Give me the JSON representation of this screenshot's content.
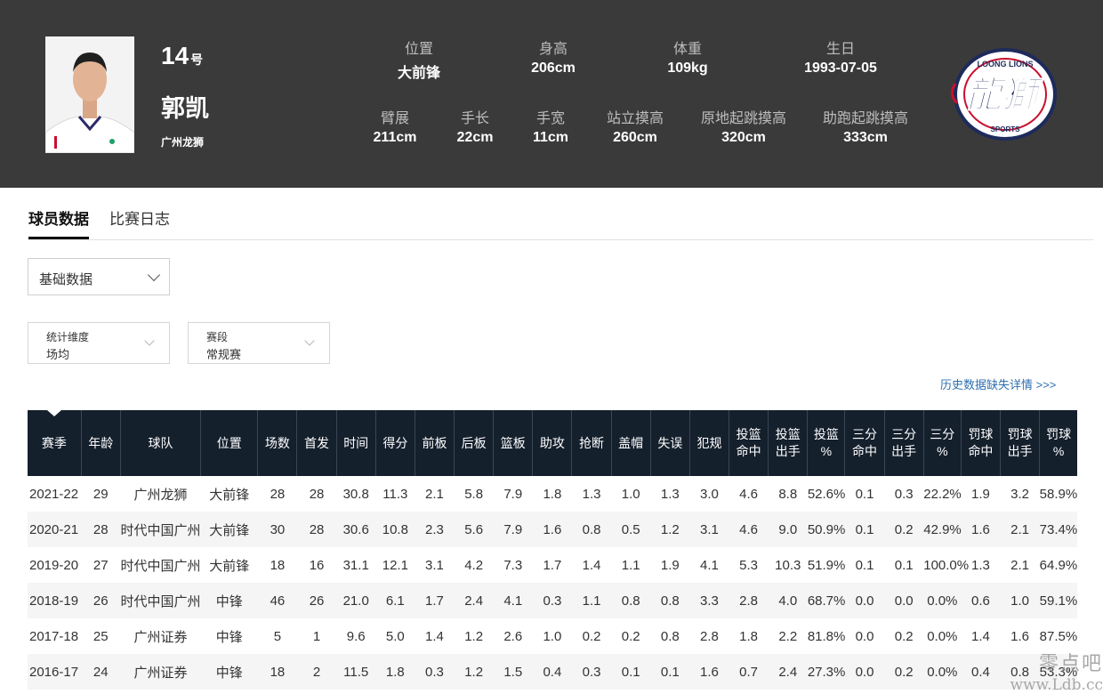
{
  "player": {
    "number": "14",
    "number_suffix": "号",
    "name": "郭凯",
    "team": "广州龙狮"
  },
  "bio_row1": [
    {
      "label": "位置",
      "value": "大前锋"
    },
    {
      "label": "身高",
      "value": "206cm"
    },
    {
      "label": "体重",
      "value": "109kg"
    },
    {
      "label": "生日",
      "value": "1993-07-05"
    }
  ],
  "bio_row2": [
    {
      "label": "臂展",
      "value": "211cm"
    },
    {
      "label": "手长",
      "value": "22cm"
    },
    {
      "label": "手宽",
      "value": "11cm"
    },
    {
      "label": "站立摸高",
      "value": "260cm"
    },
    {
      "label": "原地起跳摸高",
      "value": "320cm"
    },
    {
      "label": "助跑起跳摸高",
      "value": "333cm"
    }
  ],
  "logo": {
    "top_text": "LOONG LIONS",
    "main_text": "龍獅",
    "bottom_text": "SPORTS"
  },
  "tabs": [
    {
      "label": "球员数据",
      "active": true
    },
    {
      "label": "比赛日志",
      "active": false
    }
  ],
  "stat_type_select": {
    "value": "基础数据"
  },
  "filters": [
    {
      "label": "统计维度",
      "value": "场均"
    },
    {
      "label": "赛段",
      "value": "常规赛"
    }
  ],
  "history_link": "历史数据缺失详情 >>>",
  "table": {
    "headers": [
      [
        "赛季"
      ],
      [
        "年龄"
      ],
      [
        "球队"
      ],
      [
        "位置"
      ],
      [
        "场数"
      ],
      [
        "首发"
      ],
      [
        "时间"
      ],
      [
        "得分"
      ],
      [
        "前板"
      ],
      [
        "后板"
      ],
      [
        "篮板"
      ],
      [
        "助攻"
      ],
      [
        "抢断"
      ],
      [
        "盖帽"
      ],
      [
        "失误"
      ],
      [
        "犯规"
      ],
      [
        "投篮",
        "命中"
      ],
      [
        "投篮",
        "出手"
      ],
      [
        "投篮",
        "%"
      ],
      [
        "三分",
        "命中"
      ],
      [
        "三分",
        "出手"
      ],
      [
        "三分",
        "%"
      ],
      [
        "罚球",
        "命中"
      ],
      [
        "罚球",
        "出手"
      ],
      [
        "罚球",
        "%"
      ]
    ],
    "rows": [
      [
        "2021-22",
        "29",
        "广州龙狮",
        "大前锋",
        "28",
        "28",
        "30.8",
        "11.3",
        "2.1",
        "5.8",
        "7.9",
        "1.8",
        "1.3",
        "1.0",
        "1.3",
        "3.0",
        "4.6",
        "8.8",
        "52.6%",
        "0.1",
        "0.3",
        "22.2%",
        "1.9",
        "3.2",
        "58.9%"
      ],
      [
        "2020-21",
        "28",
        "时代中国广州",
        "大前锋",
        "30",
        "28",
        "30.6",
        "10.8",
        "2.3",
        "5.6",
        "7.9",
        "1.6",
        "0.8",
        "0.5",
        "1.2",
        "3.1",
        "4.6",
        "9.0",
        "50.9%",
        "0.1",
        "0.2",
        "42.9%",
        "1.6",
        "2.1",
        "73.4%"
      ],
      [
        "2019-20",
        "27",
        "时代中国广州",
        "大前锋",
        "18",
        "16",
        "31.1",
        "12.1",
        "3.1",
        "4.2",
        "7.3",
        "1.7",
        "1.4",
        "1.1",
        "1.9",
        "4.1",
        "5.3",
        "10.3",
        "51.9%",
        "0.1",
        "0.1",
        "100.0%",
        "1.3",
        "2.1",
        "64.9%"
      ],
      [
        "2018-19",
        "26",
        "时代中国广州",
        "中锋",
        "46",
        "26",
        "21.0",
        "6.1",
        "1.7",
        "2.4",
        "4.1",
        "0.3",
        "1.1",
        "0.8",
        "0.8",
        "3.3",
        "2.8",
        "4.0",
        "68.7%",
        "0.0",
        "0.0",
        "0.0%",
        "0.6",
        "1.0",
        "59.1%"
      ],
      [
        "2017-18",
        "25",
        "广州证券",
        "中锋",
        "5",
        "1",
        "9.6",
        "5.0",
        "1.4",
        "1.2",
        "2.6",
        "1.0",
        "0.2",
        "0.2",
        "0.8",
        "2.8",
        "1.8",
        "2.2",
        "81.8%",
        "0.0",
        "0.2",
        "0.0%",
        "1.4",
        "1.6",
        "87.5%"
      ],
      [
        "2016-17",
        "24",
        "广州证券",
        "中锋",
        "18",
        "2",
        "11.5",
        "1.8",
        "0.3",
        "1.2",
        "1.5",
        "0.4",
        "0.3",
        "0.1",
        "0.1",
        "1.6",
        "0.7",
        "2.4",
        "27.3%",
        "0.0",
        "0.2",
        "0.0%",
        "0.4",
        "0.8",
        "53.3%"
      ]
    ]
  },
  "watermark": {
    "line1": "零点吧",
    "line2": "www.Ldb.cc"
  },
  "colors": {
    "header_bg": "#3a3a3a",
    "table_header_bg": "#15202d",
    "link": "#2f6fb0",
    "logo_navy": "#1d2a5c",
    "logo_red": "#c8102e"
  }
}
